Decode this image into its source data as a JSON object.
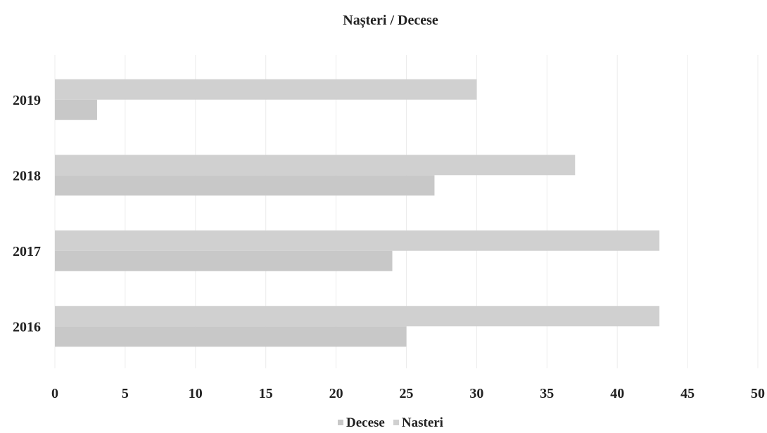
{
  "chart_data": {
    "type": "bar",
    "orientation": "horizontal",
    "title": "Nașteri / Decese",
    "categories": [
      "2016",
      "2017",
      "2018",
      "2019"
    ],
    "series": [
      {
        "name": "Decese",
        "values": [
          25,
          24,
          27,
          3
        ],
        "color": "#c8c8c8"
      },
      {
        "name": "Nasteri",
        "values": [
          43,
          43,
          37,
          30
        ],
        "color": "#d0d0d0"
      }
    ],
    "x_ticks": [
      0,
      5,
      10,
      15,
      20,
      25,
      30,
      35,
      40,
      45,
      50
    ],
    "xlim": [
      0,
      50
    ],
    "grid": true,
    "legend_position": "bottom"
  }
}
